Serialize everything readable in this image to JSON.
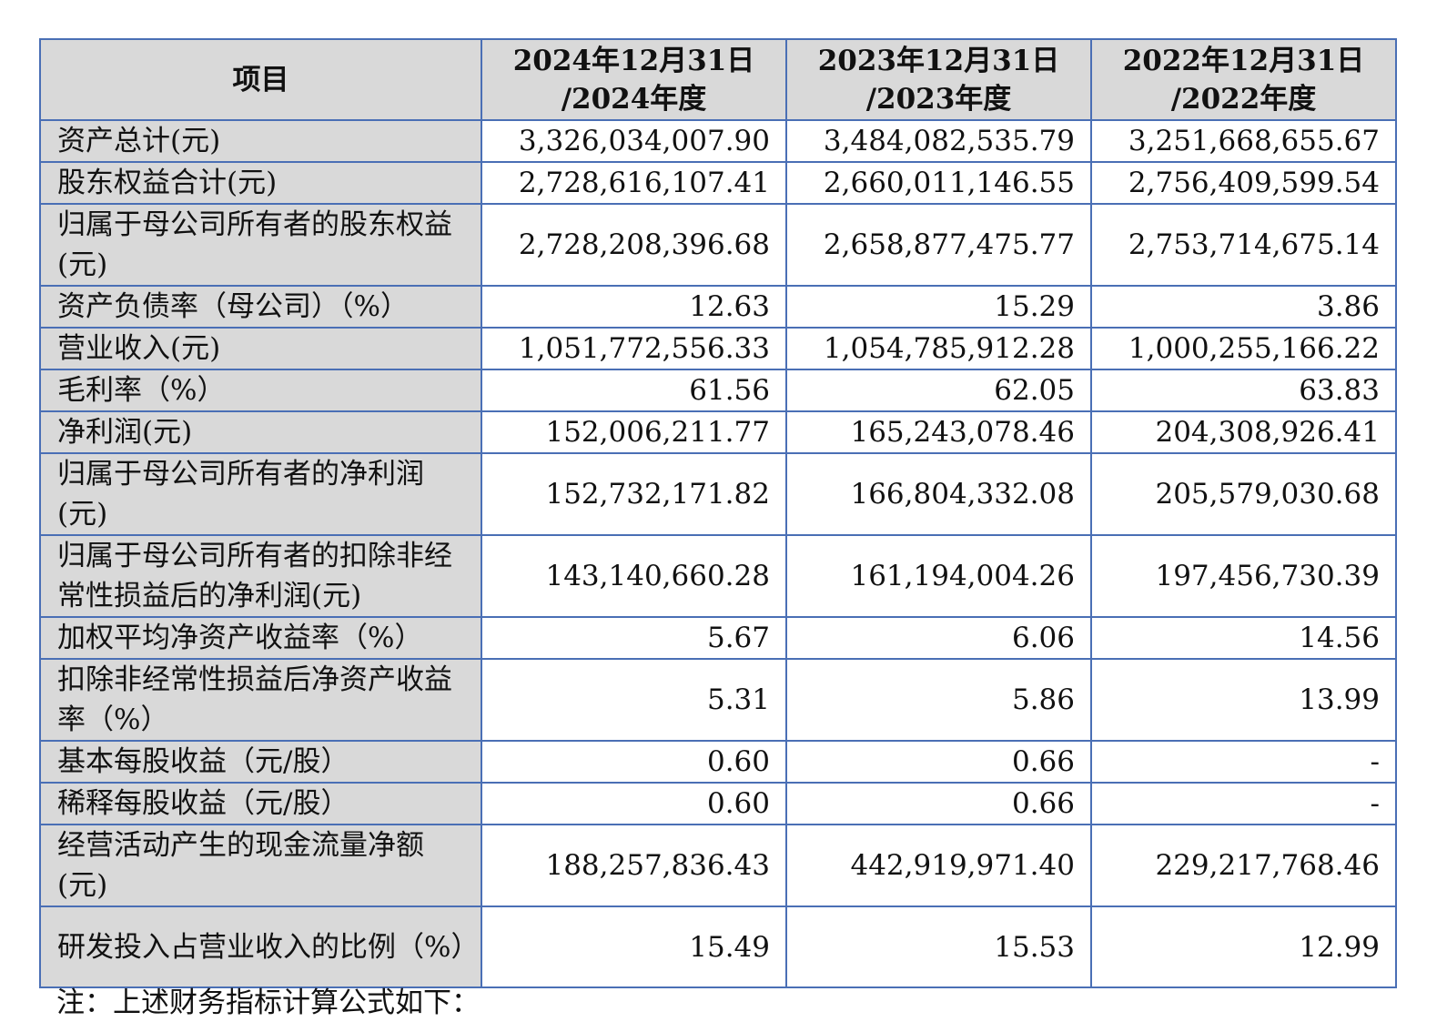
{
  "table": {
    "headers": [
      [
        "项目"
      ],
      [
        "2024年12月31日",
        "/2024年度"
      ],
      [
        "2023年12月31日",
        "/2023年度"
      ],
      [
        "2022年12月31日",
        "/2022年度"
      ]
    ],
    "rows": [
      {
        "label": "资产总计(元)",
        "values": [
          "3,326,034,007.90",
          "3,484,082,535.79",
          "3,251,668,655.67"
        ]
      },
      {
        "label": "股东权益合计(元)",
        "values": [
          "2,728,616,107.41",
          "2,660,011,146.55",
          "2,756,409,599.54"
        ]
      },
      {
        "label": "归属于母公司所有者的股东权益(元)",
        "values": [
          "2,728,208,396.68",
          "2,658,877,475.77",
          "2,753,714,675.14"
        ]
      },
      {
        "label": "资产负债率（母公司）（%）",
        "values": [
          "12.63",
          "15.29",
          "3.86"
        ]
      },
      {
        "label": "营业收入(元)",
        "values": [
          "1,051,772,556.33",
          "1,054,785,912.28",
          "1,000,255,166.22"
        ]
      },
      {
        "label": "毛利率（%）",
        "values": [
          "61.56",
          "62.05",
          "63.83"
        ]
      },
      {
        "label": "净利润(元)",
        "values": [
          "152,006,211.77",
          "165,243,078.46",
          "204,308,926.41"
        ]
      },
      {
        "label": "归属于母公司所有者的净利润(元)",
        "values": [
          "152,732,171.82",
          "166,804,332.08",
          "205,579,030.68"
        ]
      },
      {
        "label": "归属于母公司所有者的扣除非经常性损益后的净利润(元)",
        "values": [
          "143,140,660.28",
          "161,194,004.26",
          "197,456,730.39"
        ]
      },
      {
        "label": "加权平均净资产收益率（%）",
        "values": [
          "5.67",
          "6.06",
          "14.56"
        ]
      },
      {
        "label": "扣除非经常性损益后净资产收益率（%）",
        "values": [
          "5.31",
          "5.86",
          "13.99"
        ]
      },
      {
        "label": "基本每股收益（元/股）",
        "values": [
          "0.60",
          "0.66",
          "-"
        ]
      },
      {
        "label": "稀释每股收益（元/股）",
        "values": [
          "0.60",
          "0.66",
          "-"
        ]
      },
      {
        "label": "经营活动产生的现金流量净额(元)",
        "values": [
          "188,257,836.43",
          "442,919,971.40",
          "229,217,768.46"
        ]
      },
      {
        "label": "研发投入占营业收入的比例（%）",
        "values": [
          "15.49",
          "15.53",
          "12.99"
        ]
      }
    ]
  },
  "note": "注：上述财务指标计算公式如下："
}
